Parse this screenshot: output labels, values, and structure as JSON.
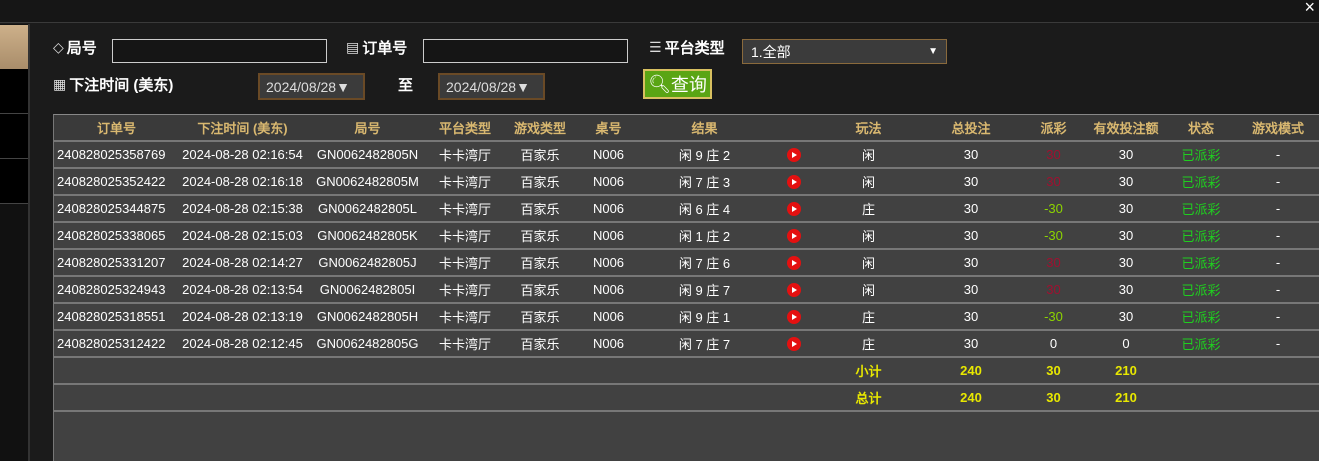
{
  "window": {
    "close": "×"
  },
  "filters": {
    "round_label": "局号",
    "round_value": "",
    "order_label": "订单号",
    "order_value": "",
    "platform_label": "平台类型",
    "platform_value": "1.全部",
    "time_label": "下注时间 (美东)",
    "date_from": "2024/08/28▼",
    "to_label": "至",
    "date_to": "2024/08/28▼",
    "query_button": "查询"
  },
  "table": {
    "headers": [
      "订单号",
      "下注时间 (美东)",
      "局号",
      "平台类型",
      "游戏类型",
      "桌号",
      "结果",
      "",
      "玩法",
      "总投注",
      "派彩",
      "有效投注额",
      "状态",
      "游戏模式"
    ],
    "rows": [
      {
        "order": "240828025358769",
        "time": "2024-08-28 02:16:54",
        "round": "GN0062482805N",
        "platform": "卡卡湾厅",
        "game": "百家乐",
        "table": "N006",
        "result": "闲 9 庄 2",
        "play": "闲",
        "bet": "30",
        "payout": "30",
        "payout_color": "red",
        "valid": "30",
        "status": "已派彩",
        "mode": "-"
      },
      {
        "order": "240828025352422",
        "time": "2024-08-28 02:16:18",
        "round": "GN0062482805M",
        "platform": "卡卡湾厅",
        "game": "百家乐",
        "table": "N006",
        "result": "闲 7 庄 3",
        "play": "闲",
        "bet": "30",
        "payout": "30",
        "payout_color": "red",
        "valid": "30",
        "status": "已派彩",
        "mode": "-"
      },
      {
        "order": "240828025344875",
        "time": "2024-08-28 02:15:38",
        "round": "GN0062482805L",
        "platform": "卡卡湾厅",
        "game": "百家乐",
        "table": "N006",
        "result": "闲 6 庄 4",
        "play": "庄",
        "bet": "30",
        "payout": "-30",
        "payout_color": "green",
        "valid": "30",
        "status": "已派彩",
        "mode": "-"
      },
      {
        "order": "240828025338065",
        "time": "2024-08-28 02:15:03",
        "round": "GN0062482805K",
        "platform": "卡卡湾厅",
        "game": "百家乐",
        "table": "N006",
        "result": "闲 1 庄 2",
        "play": "闲",
        "bet": "30",
        "payout": "-30",
        "payout_color": "green",
        "valid": "30",
        "status": "已派彩",
        "mode": "-"
      },
      {
        "order": "240828025331207",
        "time": "2024-08-28 02:14:27",
        "round": "GN0062482805J",
        "platform": "卡卡湾厅",
        "game": "百家乐",
        "table": "N006",
        "result": "闲 7 庄 6",
        "play": "闲",
        "bet": "30",
        "payout": "30",
        "payout_color": "red",
        "valid": "30",
        "status": "已派彩",
        "mode": "-"
      },
      {
        "order": "240828025324943",
        "time": "2024-08-28 02:13:54",
        "round": "GN0062482805I",
        "platform": "卡卡湾厅",
        "game": "百家乐",
        "table": "N006",
        "result": "闲 9 庄 7",
        "play": "闲",
        "bet": "30",
        "payout": "30",
        "payout_color": "red",
        "valid": "30",
        "status": "已派彩",
        "mode": "-"
      },
      {
        "order": "240828025318551",
        "time": "2024-08-28 02:13:19",
        "round": "GN0062482805H",
        "platform": "卡卡湾厅",
        "game": "百家乐",
        "table": "N006",
        "result": "闲 9 庄 1",
        "play": "庄",
        "bet": "30",
        "payout": "-30",
        "payout_color": "green",
        "valid": "30",
        "status": "已派彩",
        "mode": "-"
      },
      {
        "order": "240828025312422",
        "time": "2024-08-28 02:12:45",
        "round": "GN0062482805G",
        "platform": "卡卡湾厅",
        "game": "百家乐",
        "table": "N006",
        "result": "闲 7 庄 7",
        "play": "庄",
        "bet": "30",
        "payout": "0",
        "payout_color": "white",
        "valid": "0",
        "status": "已派彩",
        "mode": "-"
      }
    ],
    "subtotal": {
      "label": "小计",
      "bet": "240",
      "payout": "30",
      "valid": "210"
    },
    "total": {
      "label": "总计",
      "bet": "240",
      "payout": "30",
      "valid": "210"
    }
  },
  "colors": {
    "header_text": "#d9b870",
    "payout_win": "#a01030",
    "payout_loss": "#8cd400",
    "status": "#1fcf1f",
    "totals": "#e8e800"
  }
}
